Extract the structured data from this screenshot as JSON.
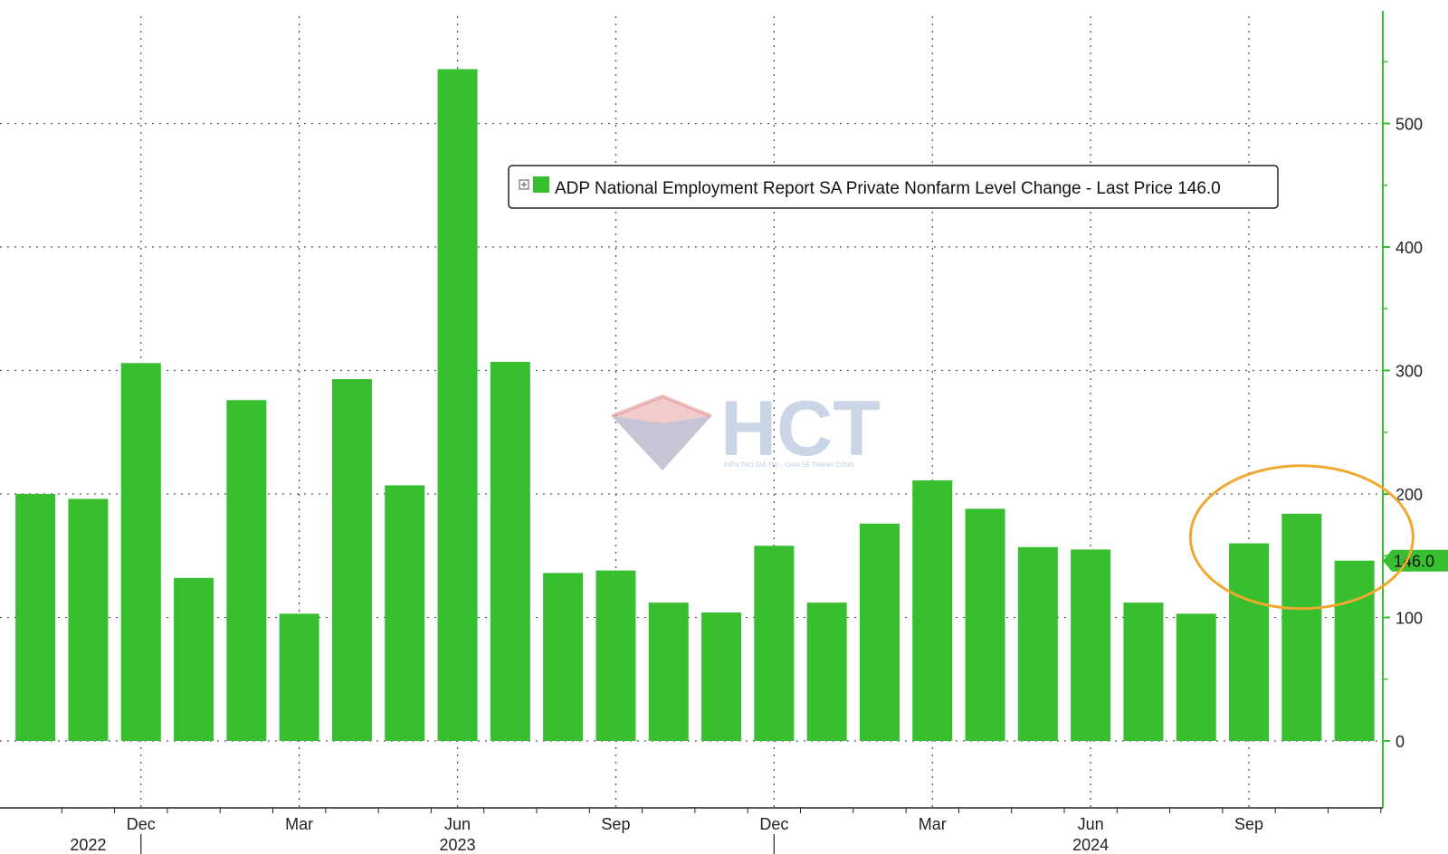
{
  "chart_data": {
    "type": "bar",
    "categories": [
      "Oct 2022",
      "Nov 2022",
      "Dec 2022",
      "Jan 2023",
      "Feb 2023",
      "Mar 2023",
      "Apr 2023",
      "May 2023",
      "Jun 2023",
      "Jul 2023",
      "Aug 2023",
      "Sep 2023",
      "Oct 2023",
      "Nov 2023",
      "Dec 2023",
      "Jan 2024",
      "Feb 2024",
      "Mar 2024",
      "Apr 2024",
      "May 2024",
      "Jun 2024",
      "Jul 2024",
      "Aug 2024",
      "Sep 2024",
      "Oct 2024",
      "Nov 2024"
    ],
    "series": [
      {
        "name": "ADP National Employment Report SA Private Nonfarm Level Change - Last Price 146.0",
        "values": [
          200,
          196,
          306,
          132,
          276,
          103,
          293,
          207,
          544,
          307,
          136,
          138,
          112,
          104,
          158,
          112,
          176,
          211,
          188,
          157,
          155,
          112,
          103,
          160,
          184,
          146
        ]
      }
    ],
    "title": "",
    "xlabel": "",
    "ylabel": "",
    "ylim": [
      -55,
      590
    ],
    "y_ticks": [
      0,
      100,
      200,
      300,
      400,
      500
    ],
    "y_tick_labels": [
      "0",
      "100",
      "200",
      "300",
      "400",
      "500"
    ],
    "x_month_labels": [
      {
        "index": 2,
        "label": "Dec"
      },
      {
        "index": 5,
        "label": "Mar"
      },
      {
        "index": 8,
        "label": "Jun"
      },
      {
        "index": 11,
        "label": "Sep"
      },
      {
        "index": 14,
        "label": "Dec"
      },
      {
        "index": 17,
        "label": "Mar"
      },
      {
        "index": 20,
        "label": "Jun"
      },
      {
        "index": 23,
        "label": "Sep"
      }
    ],
    "x_year_labels": [
      {
        "index": 1,
        "label": "2022"
      },
      {
        "index": 8,
        "label": "2023"
      },
      {
        "index": 20,
        "label": "2024"
      }
    ],
    "last_value_label": "146.0",
    "legend": {
      "text": "ADP National Employment Report SA Private Nonfarm Level Change - Last Price 146.0",
      "placement": "top-center"
    },
    "grid": true,
    "y_axis_side": "right",
    "highlight": {
      "type": "ellipse",
      "around_indices": [
        23,
        24,
        25
      ],
      "color": "#f0a830"
    }
  },
  "colors": {
    "bar": "#37bf2f",
    "axis": "#37bf2f",
    "grid": "#555555",
    "highlight": "#f0a830",
    "watermark": "#9fb6d3"
  },
  "watermark": {
    "text": "HCT",
    "subtitle": "KIẾN TẠO GIÁ TRỊ – CHIA SẺ THÀNH CÔNG",
    "icon": "diamond-logo-icon"
  }
}
